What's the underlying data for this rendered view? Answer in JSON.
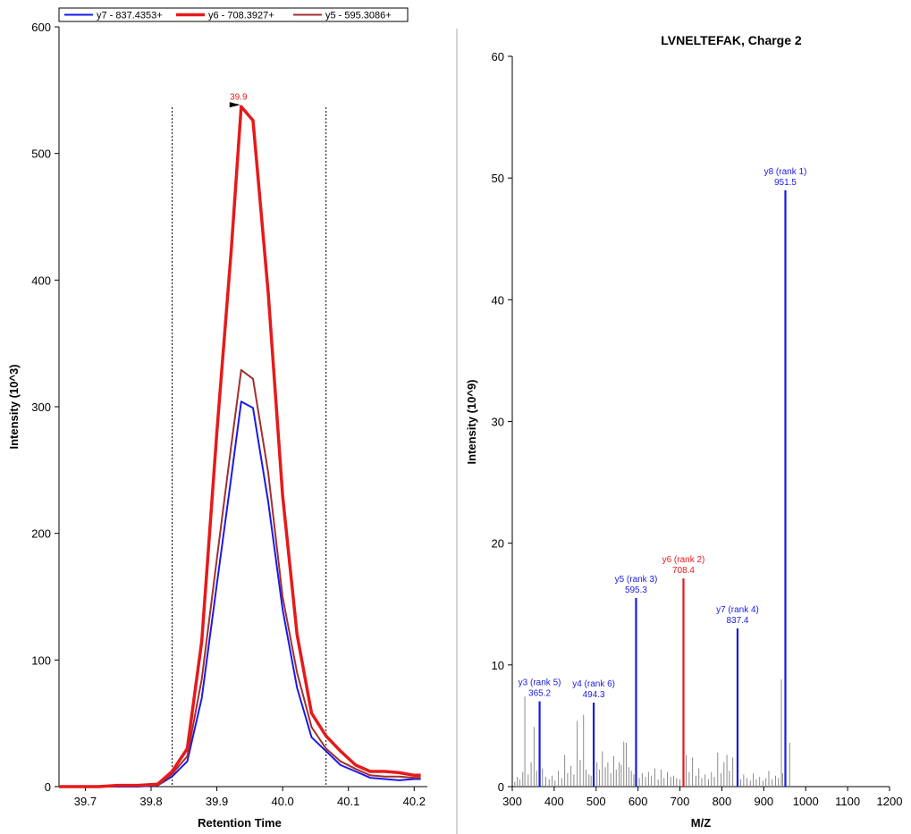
{
  "colors": {
    "blue": "#1a1ae6",
    "red": "#e61a1a",
    "darkred": "#a03030",
    "gray": "#8a8a8a",
    "divider": "#aaaaaa"
  },
  "chart_data": [
    {
      "type": "line",
      "title": "",
      "xlabel": "Retention Time",
      "ylabel": "Intensity (10^3)",
      "xlim": [
        39.66,
        40.22
      ],
      "ylim": [
        0,
        600
      ],
      "x_ticks": [
        "39.7",
        "39.8",
        "39.9",
        "40.0",
        "40.1",
        "40.2"
      ],
      "x_tick_values": [
        39.7,
        39.8,
        39.9,
        40.0,
        40.1,
        40.2
      ],
      "y_ticks": [
        "0",
        "100",
        "200",
        "300",
        "400",
        "500",
        "600"
      ],
      "y_tick_values": [
        0,
        100,
        200,
        300,
        400,
        500,
        600
      ],
      "legend_placement": "top-left",
      "boundary_lines": [
        39.832,
        40.066
      ],
      "peak_annotation": {
        "label": "39.9",
        "x": 39.937,
        "y": 537,
        "series": 1
      },
      "series": [
        {
          "name": "y7 - 837.4353+",
          "color": "#1a1ae6",
          "width": 2,
          "x": [
            39.66,
            39.69,
            39.72,
            39.75,
            39.78,
            39.81,
            39.832,
            39.855,
            39.877,
            39.9,
            39.922,
            39.937,
            39.955,
            39.978,
            40.0,
            40.022,
            40.044,
            40.066,
            40.088,
            40.111,
            40.133,
            40.155,
            40.177,
            40.2,
            40.21
          ],
          "y": [
            0,
            0,
            0,
            0,
            0,
            1,
            8,
            20,
            70,
            160,
            245,
            304,
            299,
            225,
            140,
            78,
            39,
            28,
            17,
            12,
            7,
            6,
            5,
            6,
            6
          ]
        },
        {
          "name": "y6 - 708.3927+",
          "color": "#e61a1a",
          "width": 3.5,
          "x": [
            39.66,
            39.69,
            39.72,
            39.75,
            39.78,
            39.81,
            39.832,
            39.855,
            39.877,
            39.9,
            39.922,
            39.937,
            39.955,
            39.978,
            40.0,
            40.022,
            40.044,
            40.066,
            40.088,
            40.111,
            40.133,
            40.155,
            40.177,
            40.2,
            40.21
          ],
          "y": [
            0,
            0,
            0,
            1,
            1,
            2,
            12,
            30,
            115,
            280,
            425,
            537,
            526,
            390,
            230,
            120,
            58,
            40,
            28,
            17,
            12,
            12,
            11,
            9,
            9
          ]
        },
        {
          "name": "y5 - 595.3086+",
          "color": "#a03030",
          "width": 2,
          "x": [
            39.66,
            39.69,
            39.72,
            39.75,
            39.78,
            39.81,
            39.832,
            39.855,
            39.877,
            39.9,
            39.922,
            39.937,
            39.955,
            39.978,
            40.0,
            40.022,
            40.044,
            40.066,
            40.088,
            40.111,
            40.133,
            40.155,
            40.177,
            40.2,
            40.21
          ],
          "y": [
            0,
            0,
            0,
            1,
            1,
            1,
            10,
            24,
            85,
            180,
            270,
            329,
            322,
            248,
            150,
            90,
            47,
            30,
            20,
            14,
            9,
            8,
            8,
            7,
            7
          ]
        }
      ]
    },
    {
      "type": "bar",
      "title": "LVNELTEFAK, Charge 2",
      "xlabel": "M/Z",
      "ylabel": "Intensity (10^9)",
      "xlim": [
        300,
        1200
      ],
      "ylim": [
        0,
        60
      ],
      "x_ticks": [
        "300",
        "400",
        "500",
        "600",
        "700",
        "800",
        "900",
        "1000",
        "1100",
        "1200"
      ],
      "x_tick_values": [
        300,
        400,
        500,
        600,
        700,
        800,
        900,
        1000,
        1100,
        1200
      ],
      "y_ticks": [
        "0",
        "10",
        "20",
        "30",
        "40",
        "50",
        "60"
      ],
      "y_tick_values": [
        0,
        10,
        20,
        30,
        40,
        50,
        60
      ],
      "annotated_peaks": [
        {
          "label": "y3 (rank 5)",
          "mz_label": "365.2",
          "mz": 365.2,
          "intensity": 7.0,
          "color": "#1a1ae6"
        },
        {
          "label": "y4 (rank 6)",
          "mz_label": "494.3",
          "mz": 494.3,
          "intensity": 6.9,
          "color": "#1a1ae6"
        },
        {
          "label": "y5 (rank 3)",
          "mz_label": "595.3",
          "mz": 595.3,
          "intensity": 15.5,
          "color": "#1a1ae6"
        },
        {
          "label": "y6 (rank 2)",
          "mz_label": "708.4",
          "mz": 708.4,
          "intensity": 17.1,
          "color": "#e61a1a"
        },
        {
          "label": "y7 (rank 4)",
          "mz_label": "837.4",
          "mz": 837.4,
          "intensity": 13.0,
          "color": "#1a1ae6"
        },
        {
          "label": "y8 (rank 1)",
          "mz_label": "951.5",
          "mz": 951.5,
          "intensity": 49.0,
          "color": "#1a1ae6"
        }
      ],
      "other_peaks": {
        "mz": [
          306,
          312,
          318,
          325,
          330,
          338,
          345,
          352,
          358,
          372,
          380,
          388,
          395,
          402,
          410,
          418,
          425,
          432,
          440,
          447,
          455,
          462,
          470,
          476,
          483,
          488,
          502,
          508,
          515,
          522,
          528,
          535,
          542,
          548,
          555,
          560,
          566,
          572,
          578,
          584,
          590,
          603,
          610,
          618,
          625,
          632,
          640,
          648,
          655,
          662,
          670,
          678,
          685,
          692,
          700,
          715,
          722,
          730,
          738,
          745,
          752,
          760,
          768,
          775,
          782,
          790,
          798,
          805,
          812,
          818,
          826,
          845,
          852,
          860,
          868,
          875,
          882,
          890,
          898,
          905,
          912,
          920,
          928,
          935,
          942,
          945,
          962
        ],
        "intensity": [
          0.4,
          0.8,
          0.6,
          1.2,
          7.4,
          1.0,
          2.0,
          4.9,
          1.3,
          1.5,
          0.8,
          0.6,
          0.9,
          0.5,
          1.3,
          0.7,
          2.6,
          1.1,
          1.7,
          1.0,
          5.4,
          2.2,
          5.9,
          1.4,
          1.0,
          0.9,
          2.0,
          1.4,
          2.9,
          1.6,
          2.0,
          1.1,
          2.5,
          1.4,
          2.0,
          1.8,
          3.7,
          3.6,
          1.6,
          1.3,
          1.0,
          0.7,
          1.1,
          0.8,
          1.2,
          0.9,
          1.5,
          0.6,
          1.4,
          0.7,
          1.2,
          0.8,
          0.9,
          0.7,
          0.6,
          2.6,
          1.2,
          2.4,
          0.9,
          1.5,
          0.7,
          1.0,
          0.6,
          1.2,
          0.8,
          2.8,
          1.1,
          2.0,
          2.6,
          1.3,
          2.4,
          0.6,
          1.0,
          0.7,
          0.5,
          1.1,
          0.6,
          0.8,
          0.5,
          0.7,
          1.3,
          0.6,
          0.9,
          0.7,
          8.8,
          1.1,
          3.6
        ]
      }
    }
  ]
}
